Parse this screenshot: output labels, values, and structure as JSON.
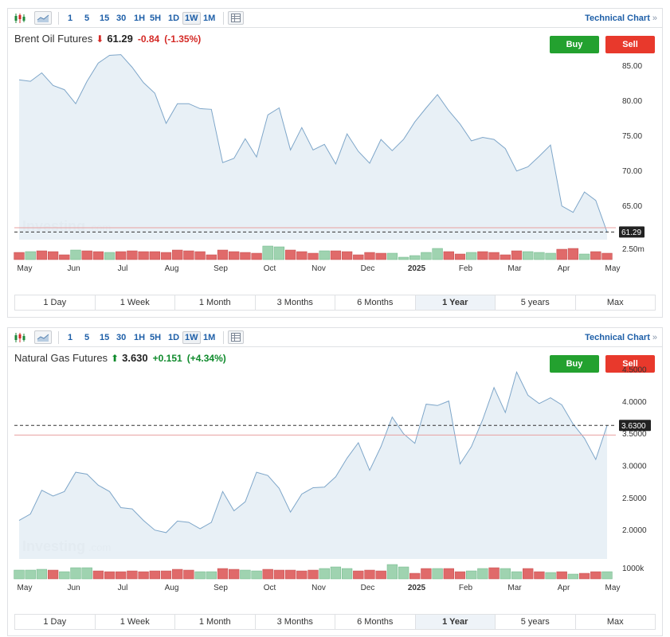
{
  "toolbar": {
    "intervals": [
      "1",
      "5",
      "15",
      "30",
      "1H",
      "5H",
      "1D",
      "1W",
      "1M"
    ],
    "active_interval": "1W",
    "technical_chart_label": "Technical Chart",
    "chevron": "»"
  },
  "buttons": {
    "buy": "Buy",
    "sell": "Sell"
  },
  "ranges": [
    "1 Day",
    "1 Week",
    "1 Month",
    "3 Months",
    "6 Months",
    "1 Year",
    "5 years",
    "Max"
  ],
  "active_range": "1 Year",
  "watermark": {
    "main": "Investing",
    "suffix": ".com"
  },
  "colors": {
    "up": "#0e8a2b",
    "down": "#d42a26",
    "line": "#7ea6c9",
    "area": "#e6eef5",
    "vol_up": "#9fd3b0",
    "vol_down": "#e06a6a"
  },
  "chart_data": [
    {
      "type": "area",
      "title": "Brent Oil Futures",
      "last": "61.29",
      "change": "-0.84",
      "change_pct": "(-1.35%)",
      "direction": "down",
      "last_badge": "61.29",
      "last_value": 61.29,
      "ref_value": 61.9,
      "x_labels": [
        "May",
        "Jun",
        "Jul",
        "Aug",
        "Sep",
        "Oct",
        "Nov",
        "Dec",
        "2025",
        "Feb",
        "Mar",
        "Apr",
        "May"
      ],
      "y_ticks": [
        65,
        70,
        75,
        80,
        85
      ],
      "y_tick_labels": [
        "65.00",
        "70.00",
        "75.00",
        "80.00",
        "85.00"
      ],
      "ylim": [
        60.2,
        88.6
      ],
      "volume_label": "2.50m",
      "values": [
        83.0,
        82.8,
        84.0,
        82.2,
        81.6,
        79.6,
        82.8,
        85.4,
        86.5,
        86.6,
        84.8,
        82.6,
        81.1,
        76.8,
        79.6,
        79.6,
        78.9,
        78.8,
        71.2,
        71.8,
        74.6,
        72.0,
        78.0,
        79.0,
        73.0,
        76.2,
        73.0,
        73.8,
        71.0,
        75.3,
        72.8,
        71.1,
        74.5,
        72.9,
        74.5,
        77.0,
        79.0,
        80.9,
        78.6,
        76.7,
        74.3,
        74.8,
        74.5,
        73.2,
        70.0,
        70.6,
        72.1,
        73.7,
        65.0,
        64.1,
        67.0,
        65.8,
        61.29
      ],
      "volumes": [
        0.45,
        0.5,
        0.55,
        0.5,
        0.3,
        0.6,
        0.55,
        0.5,
        0.45,
        0.5,
        0.55,
        0.5,
        0.5,
        0.45,
        0.6,
        0.55,
        0.5,
        0.3,
        0.6,
        0.5,
        0.45,
        0.4,
        0.85,
        0.8,
        0.6,
        0.5,
        0.4,
        0.55,
        0.55,
        0.5,
        0.3,
        0.45,
        0.4,
        0.4,
        0.15,
        0.25,
        0.45,
        0.7,
        0.5,
        0.35,
        0.45,
        0.5,
        0.45,
        0.3,
        0.55,
        0.5,
        0.45,
        0.4,
        0.65,
        0.7,
        0.35,
        0.5,
        0.4
      ],
      "volume_up": [
        false,
        true,
        false,
        false,
        false,
        true,
        false,
        false,
        true,
        false,
        false,
        false,
        false,
        false,
        false,
        false,
        false,
        false,
        false,
        false,
        false,
        false,
        true,
        true,
        false,
        false,
        false,
        true,
        false,
        false,
        false,
        false,
        false,
        true,
        true,
        true,
        true,
        true,
        false,
        false,
        true,
        false,
        false,
        false,
        false,
        true,
        true,
        true,
        false,
        false,
        true,
        false,
        false
      ]
    },
    {
      "type": "area",
      "title": "Natural Gas Futures",
      "last": "3.630",
      "change": "+0.151",
      "change_pct": "(+4.34%)",
      "direction": "up",
      "last_badge": "3.6300",
      "last_value": 3.63,
      "ref_value": 3.48,
      "x_labels": [
        "May",
        "Jun",
        "Jul",
        "Aug",
        "Sep",
        "Oct",
        "Nov",
        "Dec",
        "2025",
        "Feb",
        "Mar",
        "Apr",
        "May"
      ],
      "y_ticks": [
        2.0,
        2.5,
        3.0,
        3.5,
        4.0,
        4.5
      ],
      "y_tick_labels": [
        "2.0000",
        "2.5000",
        "3.0000",
        "3.5000",
        "4.0000",
        "4.5000"
      ],
      "ylim": [
        1.55,
        4.65
      ],
      "volume_label": "1000k",
      "values": [
        2.15,
        2.25,
        2.62,
        2.53,
        2.6,
        2.9,
        2.87,
        2.7,
        2.6,
        2.35,
        2.33,
        2.15,
        2.0,
        1.96,
        2.14,
        2.12,
        2.02,
        2.12,
        2.6,
        2.3,
        2.44,
        2.9,
        2.85,
        2.65,
        2.28,
        2.56,
        2.66,
        2.67,
        2.83,
        3.12,
        3.36,
        2.93,
        3.3,
        3.76,
        3.5,
        3.35,
        3.96,
        3.94,
        4.01,
        3.03,
        3.3,
        3.72,
        4.22,
        3.83,
        4.46,
        4.1,
        3.97,
        4.06,
        3.95,
        3.65,
        3.43,
        3.1,
        3.63
      ],
      "volumes": [
        0.55,
        0.55,
        0.6,
        0.55,
        0.45,
        0.7,
        0.7,
        0.5,
        0.45,
        0.45,
        0.5,
        0.45,
        0.5,
        0.5,
        0.6,
        0.55,
        0.45,
        0.45,
        0.65,
        0.6,
        0.55,
        0.5,
        0.6,
        0.55,
        0.55,
        0.5,
        0.55,
        0.65,
        0.75,
        0.65,
        0.5,
        0.55,
        0.5,
        0.9,
        0.75,
        0.35,
        0.65,
        0.65,
        0.65,
        0.45,
        0.5,
        0.65,
        0.7,
        0.65,
        0.45,
        0.65,
        0.45,
        0.4,
        0.45,
        0.3,
        0.35,
        0.45,
        0.45
      ],
      "volume_up": [
        true,
        true,
        true,
        false,
        true,
        true,
        true,
        false,
        false,
        false,
        false,
        false,
        false,
        false,
        false,
        false,
        true,
        true,
        false,
        false,
        true,
        true,
        false,
        false,
        false,
        false,
        false,
        true,
        true,
        true,
        false,
        false,
        false,
        true,
        true,
        false,
        false,
        true,
        false,
        false,
        true,
        true,
        false,
        true,
        true,
        false,
        false,
        true,
        false,
        true,
        false,
        false,
        true
      ]
    }
  ]
}
